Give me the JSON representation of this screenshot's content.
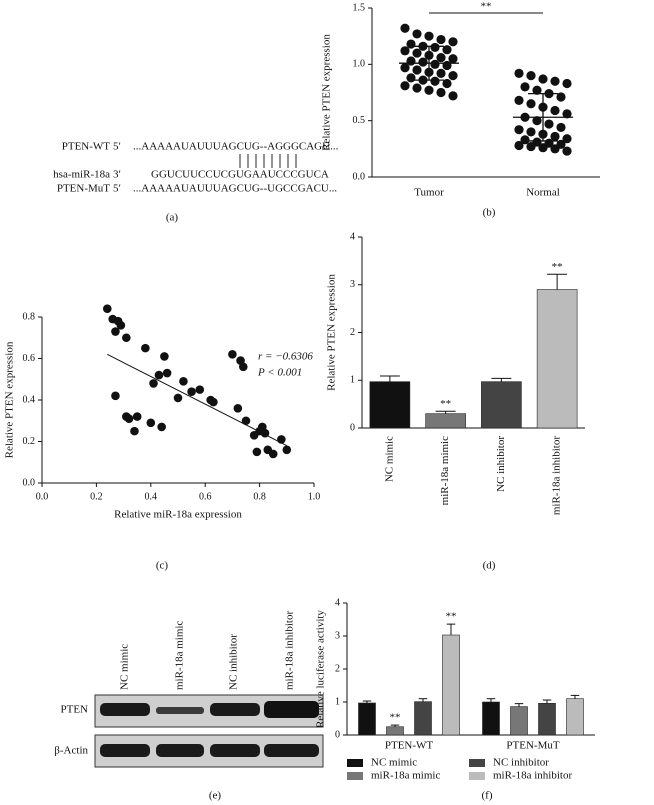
{
  "alignment": {
    "rows": [
      {
        "name": "PTEN-WT",
        "strand": "5′",
        "sequence": "...AAAAAUAUUUAGCUG--AGGGCAGU..."
      },
      {
        "name": "hsa-miR-18a",
        "strand": "3′",
        "sequence": "GGUCUUCCUCGUGAAUCCCGUCA"
      },
      {
        "name": "PTEN-MuT",
        "strand": "5′",
        "sequence": "...AAAAAUAUUUAGCUG--UGCCGACU..."
      }
    ]
  },
  "blot": {
    "lanes": [
      "NC mimic",
      "miR-18a mimic",
      "NC inhibitor",
      "miR-18a inhibitor"
    ],
    "rows": [
      "PTEN",
      "β-Actin"
    ]
  },
  "panel_labels": [
    "(a)",
    "(b)",
    "(c)",
    "(d)",
    "(e)",
    "(f)"
  ],
  "chart_data": [
    {
      "type": "strip",
      "categories": [
        "Tumor",
        "Normal"
      ],
      "ylabel": "Relative PTEN expression",
      "points": [
        [
          1.32,
          1.27,
          1.25,
          1.22,
          1.2,
          1.18,
          1.16,
          1.15,
          1.13,
          1.12,
          1.1,
          1.08,
          1.06,
          1.05,
          1.03,
          1.02,
          1.0,
          0.99,
          0.97,
          0.95,
          0.93,
          0.92,
          0.9,
          0.88,
          0.86,
          0.85,
          0.83,
          0.81,
          0.79,
          0.77,
          0.75,
          0.72
        ],
        [
          0.92,
          0.9,
          0.87,
          0.85,
          0.83,
          0.8,
          0.77,
          0.74,
          0.71,
          0.68,
          0.65,
          0.62,
          0.59,
          0.56,
          0.53,
          0.5,
          0.47,
          0.44,
          0.42,
          0.4,
          0.38,
          0.36,
          0.34,
          0.33,
          0.31,
          0.3,
          0.29,
          0.28,
          0.27,
          0.26,
          0.25,
          0.23
        ]
      ],
      "means": [
        1.01,
        0.53
      ],
      "errors": [
        0.15,
        0.21
      ],
      "significance": "**",
      "ylim": [
        0,
        1.5
      ],
      "yticks": [
        {
          "value": 0,
          "label": "0.0"
        },
        0.5,
        {
          "value": 1,
          "label": "1.0"
        },
        1.5
      ]
    },
    {
      "type": "scatter",
      "xlabel": "Relative miR-18a expression",
      "ylabel": "Relative PTEN expression",
      "x": [
        0.24,
        0.26,
        0.27,
        0.28,
        0.29,
        0.31,
        0.27,
        0.31,
        0.32,
        0.34,
        0.35,
        0.38,
        0.4,
        0.41,
        0.43,
        0.44,
        0.45,
        0.46,
        0.5,
        0.52,
        0.55,
        0.58,
        0.62,
        0.63,
        0.7,
        0.72,
        0.73,
        0.74,
        0.75,
        0.78,
        0.79,
        0.8,
        0.81,
        0.82,
        0.83,
        0.85,
        0.88,
        0.9
      ],
      "y": [
        0.84,
        0.79,
        0.73,
        0.78,
        0.76,
        0.7,
        0.42,
        0.32,
        0.31,
        0.25,
        0.32,
        0.65,
        0.29,
        0.48,
        0.52,
        0.27,
        0.61,
        0.53,
        0.41,
        0.49,
        0.44,
        0.45,
        0.4,
        0.39,
        0.62,
        0.36,
        0.59,
        0.56,
        0.3,
        0.23,
        0.15,
        0.25,
        0.27,
        0.24,
        0.16,
        0.14,
        0.21,
        0.16
      ],
      "fit": {
        "x": [
          0.24,
          0.9
        ],
        "y": [
          0.62,
          0.18
        ]
      },
      "annotations": [
        "r = −0.6306",
        "P < 0.001"
      ],
      "xlim": [
        0,
        1
      ],
      "xticks": [
        {
          "value": 0,
          "label": "0.0"
        },
        0.2,
        0.4,
        0.6,
        0.8,
        {
          "value": 1,
          "label": "1.0"
        }
      ],
      "ylim": [
        0,
        0.8
      ],
      "yticks": [
        {
          "value": 0,
          "label": "0.0"
        },
        0.2,
        0.4,
        0.6,
        0.8
      ]
    },
    {
      "type": "bar",
      "categories": [
        "NC mimic",
        "miR-18a mimic",
        "NC inhibitor",
        "miR-18a inhibitor"
      ],
      "ylabel": "Relative PTEN expression",
      "values": [
        0.97,
        0.3,
        0.97,
        2.9
      ],
      "errors": [
        0.12,
        0.05,
        0.07,
        0.32
      ],
      "colors": [
        "#111111",
        "#777777",
        "#444444",
        "#bbbbbb"
      ],
      "significance": [
        null,
        "**",
        null,
        "**"
      ],
      "ylim": [
        0,
        4
      ],
      "yticks": [
        0,
        1,
        2,
        3,
        4
      ]
    },
    {
      "type": "bar",
      "categories": [
        "PTEN-WT",
        "PTEN-MuT"
      ],
      "ylabel": "Relative luciferase activity",
      "series": [
        {
          "name": "NC mimic",
          "color": "#111111",
          "values": [
            0.97,
            1.0
          ],
          "errors": [
            0.06,
            0.1
          ]
        },
        {
          "name": "miR-18a mimic",
          "color": "#777777",
          "values": [
            0.25,
            0.86
          ],
          "errors": [
            0.05,
            0.09
          ],
          "significance": [
            "**",
            null
          ]
        },
        {
          "name": "NC inhibitor",
          "color": "#444444",
          "values": [
            1.01,
            0.96
          ],
          "errors": [
            0.09,
            0.1
          ]
        },
        {
          "name": "miR-18a inhibitor",
          "color": "#bbbbbb",
          "values": [
            3.03,
            1.1
          ],
          "errors": [
            0.33,
            0.1
          ],
          "significance": [
            "**",
            null
          ]
        }
      ],
      "ylim": [
        0,
        4
      ],
      "yticks": [
        0,
        1,
        2,
        3,
        4
      ]
    }
  ]
}
